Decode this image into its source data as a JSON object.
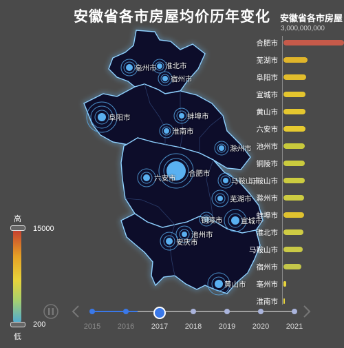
{
  "title": "安徽省各市房屋均价历年变化",
  "ranking": {
    "title": "安徽省各市房屋",
    "axis_tick": "3,000,000,000",
    "items": [
      {
        "city": "合肥市",
        "value": 1.0,
        "color": "#c65a4a"
      },
      {
        "city": "芜湖市",
        "value": 0.4,
        "color": "#e0b52a"
      },
      {
        "city": "阜阳市",
        "value": 0.38,
        "color": "#e2bd2c"
      },
      {
        "city": "宣城市",
        "value": 0.36,
        "color": "#e4c52e"
      },
      {
        "city": "黄山市",
        "value": 0.36,
        "color": "#e5c72f"
      },
      {
        "city": "六安市",
        "value": 0.36,
        "color": "#e6ca30"
      },
      {
        "city": "池州市",
        "value": 0.35,
        "color": "#c8c93c"
      },
      {
        "city": "铜陵市",
        "value": 0.35,
        "color": "#cacb3e"
      },
      {
        "city": "马鞍山市",
        "value": 0.35,
        "color": "#cccc40"
      },
      {
        "city": "滁州市",
        "value": 0.34,
        "color": "#cdcc42"
      },
      {
        "city": "蚌埠市",
        "value": 0.34,
        "color": "#e0c22f"
      },
      {
        "city": "淮北市",
        "value": 0.33,
        "color": "#cfcc44"
      },
      {
        "city": "马鞍山市",
        "value": 0.32,
        "color": "#c9c946"
      },
      {
        "city": "宿州市",
        "value": 0.3,
        "color": "#c4c64a"
      },
      {
        "city": "亳州市",
        "value": 0.04,
        "color": "#e8d43b"
      },
      {
        "city": "淮南市",
        "value": 0.01,
        "color": "#e8d43b"
      }
    ]
  },
  "map_labels": [
    {
      "name": "亳州市"
    },
    {
      "name": "淮北市"
    },
    {
      "name": "宿州市"
    },
    {
      "name": "阜阳市"
    },
    {
      "name": "蚌埠市"
    },
    {
      "name": "淮南市"
    },
    {
      "name": "滁州市"
    },
    {
      "name": "六安市"
    },
    {
      "name": "合肥市"
    },
    {
      "name": "马鞍山市"
    },
    {
      "name": "芜湖市"
    },
    {
      "name": "宣城市"
    },
    {
      "name": "铜陵市"
    },
    {
      "name": "池州市"
    },
    {
      "name": "安庆市"
    },
    {
      "name": "黄山市"
    }
  ],
  "visual_map": {
    "high_label": "高",
    "low_label": "低",
    "max": "15000",
    "min": "200"
  },
  "timeline": {
    "years": [
      "2015",
      "2016",
      "2017",
      "2018",
      "2019",
      "2020",
      "2021"
    ],
    "current_index": 2
  }
}
